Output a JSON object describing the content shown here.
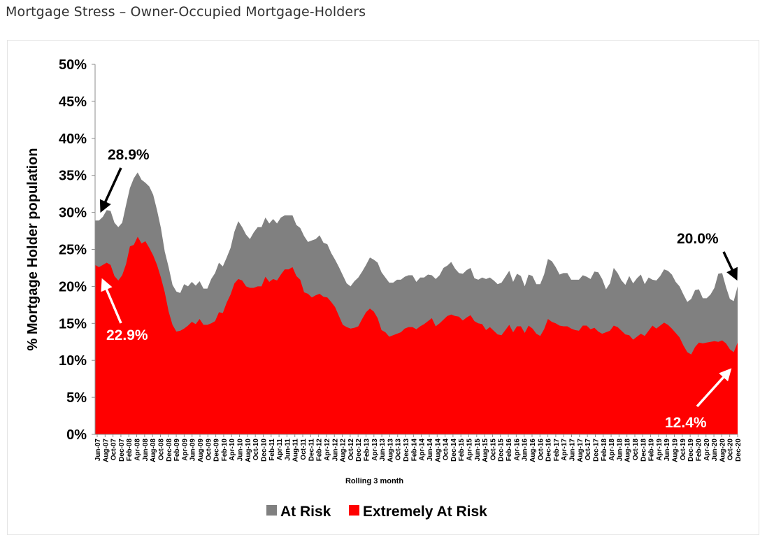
{
  "page": {
    "title": "Mortgage Stress – Owner-Occupied Mortgage-Holders"
  },
  "chart_data": {
    "type": "area",
    "title": "",
    "xlabel": "Rolling 3 month",
    "ylabel": "% Mortgage Holder population",
    "ylim": [
      0,
      50
    ],
    "yticks": [
      0,
      5,
      10,
      15,
      20,
      25,
      30,
      35,
      40,
      45,
      50
    ],
    "ytick_labels": [
      "0%",
      "5%",
      "10%",
      "15%",
      "20%",
      "25%",
      "30%",
      "35%",
      "40%",
      "45%",
      "50%"
    ],
    "xtick_labels": [
      "Jun-07",
      "Aug-07",
      "Oct-07",
      "Dec-07",
      "Feb-08",
      "Apr-08",
      "Jun-08",
      "Aug-08",
      "Oct-08",
      "Dec-08",
      "Feb-09",
      "Apr-09",
      "Jun-09",
      "Aug-09",
      "Oct-09",
      "Dec-09",
      "Feb-10",
      "Apr-10",
      "Jun-10",
      "Aug-10",
      "Oct-10",
      "Dec-10",
      "Feb-11",
      "Apr-11",
      "Jun-11",
      "Aug-11",
      "Oct-11",
      "Dec-11",
      "Feb-12",
      "Apr-12",
      "Jun-12",
      "Aug-12",
      "Oct-12",
      "Dec-12",
      "Feb-13",
      "Apr-13",
      "Jun-13",
      "Aug-13",
      "Oct-13",
      "Dec-13",
      "Feb-14",
      "Apr-14",
      "Jun-14",
      "Aug-14",
      "Oct-14",
      "Dec-14",
      "Feb-15",
      "Apr-15",
      "Jun-15",
      "Aug-15",
      "Oct-15",
      "Dec-15",
      "Feb-16",
      "Apr-16",
      "Jun-16",
      "Aug-16",
      "Oct-16",
      "Dec-16",
      "Feb-17",
      "Apr-17",
      "Jun-17",
      "Aug-17",
      "Oct-17",
      "Dec-17",
      "Feb-18",
      "Apr-18",
      "Jun-18",
      "Aug-18",
      "Oct-18",
      "Dec-18",
      "Feb-19",
      "Apr-19",
      "Jun-19",
      "Aug-19",
      "Oct-19",
      "Dec-19",
      "Feb-20",
      "Apr-20",
      "Jun-20",
      "Aug-20",
      "Oct-20",
      "Dec-20"
    ],
    "grid": false,
    "legend": "bottom",
    "series": [
      {
        "name": "At Risk",
        "color": "#808080",
        "values": [
          28.9,
          28.9,
          29.4,
          30.3,
          30.2,
          28.6,
          28.0,
          28.6,
          31.0,
          33.3,
          34.6,
          35.4,
          34.4,
          34.0,
          33.5,
          32.4,
          30.3,
          27.9,
          24.7,
          22.6,
          20.2,
          19.3,
          19.1,
          20.3,
          20.0,
          20.6,
          20.1,
          20.7,
          19.7,
          19.7,
          21.0,
          21.8,
          23.2,
          22.7,
          23.9,
          25.2,
          27.4,
          28.8,
          28.0,
          27.0,
          26.4,
          27.3,
          28.0,
          28.0,
          29.3,
          28.5,
          29.1,
          28.5,
          29.3,
          29.6,
          29.6,
          29.6,
          28.3,
          27.9,
          26.8,
          26.0,
          26.2,
          26.4,
          26.9,
          25.9,
          25.7,
          24.5,
          23.6,
          22.6,
          21.5,
          20.4,
          20.0,
          20.7,
          21.2,
          22.0,
          22.9,
          23.9,
          23.6,
          23.2,
          21.9,
          21.2,
          20.5,
          20.5,
          20.9,
          20.9,
          21.3,
          21.5,
          21.5,
          20.6,
          21.2,
          21.2,
          21.6,
          21.5,
          21.0,
          21.5,
          22.5,
          22.8,
          23.3,
          22.4,
          21.8,
          21.7,
          22.2,
          22.5,
          21.1,
          20.9,
          21.2,
          21.0,
          21.2,
          20.8,
          20.3,
          20.5,
          21.3,
          22.1,
          20.6,
          21.7,
          21.4,
          20.0,
          21.6,
          21.4,
          20.3,
          20.3,
          21.6,
          23.7,
          23.4,
          22.6,
          21.6,
          21.8,
          21.8,
          20.9,
          20.9,
          20.9,
          21.5,
          21.3,
          21.0,
          22.0,
          21.9,
          21.0,
          19.6,
          20.4,
          22.5,
          21.8,
          20.8,
          20.2,
          21.4,
          20.4,
          21.1,
          21.6,
          20.3,
          21.2,
          20.9,
          20.8,
          21.4,
          22.3,
          22.1,
          21.6,
          20.6,
          20.0,
          18.9,
          17.9,
          18.3,
          19.5,
          19.6,
          18.4,
          18.4,
          18.9,
          19.8,
          21.7,
          21.8,
          19.9,
          18.3,
          18.0,
          20.0
        ]
      },
      {
        "name": "Extremely At Risk",
        "color": "#ff0000",
        "values": [
          22.9,
          22.6,
          22.9,
          23.2,
          22.9,
          21.4,
          20.8,
          21.5,
          23.0,
          25.4,
          25.6,
          26.7,
          25.8,
          26.1,
          25.2,
          24.2,
          22.9,
          21.2,
          19.2,
          16.6,
          14.8,
          13.9,
          14.0,
          14.3,
          14.7,
          15.2,
          14.9,
          15.6,
          14.8,
          14.8,
          15.0,
          15.3,
          16.5,
          16.4,
          17.8,
          18.9,
          20.4,
          21.0,
          20.8,
          20.0,
          19.8,
          19.8,
          20.0,
          20.0,
          21.3,
          20.6,
          21.0,
          20.8,
          21.6,
          22.3,
          22.3,
          22.6,
          21.4,
          20.9,
          19.2,
          19.0,
          18.5,
          18.8,
          19.0,
          18.6,
          18.5,
          17.9,
          17.2,
          16.0,
          14.8,
          14.5,
          14.3,
          14.4,
          14.6,
          15.6,
          16.5,
          17.0,
          16.6,
          15.7,
          14.1,
          13.8,
          13.2,
          13.4,
          13.6,
          13.8,
          14.3,
          14.5,
          14.5,
          14.2,
          14.6,
          14.9,
          15.3,
          15.7,
          14.6,
          15.0,
          15.5,
          16.0,
          16.2,
          16.0,
          15.9,
          15.4,
          15.8,
          16.1,
          15.3,
          15.0,
          14.9,
          14.1,
          14.5,
          14.0,
          13.5,
          13.4,
          14.1,
          14.8,
          13.8,
          14.6,
          14.6,
          13.7,
          14.7,
          14.3,
          13.6,
          13.3,
          14.2,
          15.6,
          15.2,
          15.0,
          14.7,
          14.6,
          14.6,
          14.3,
          14.1,
          14.0,
          14.7,
          14.7,
          14.2,
          14.4,
          13.9,
          13.6,
          13.8,
          14.0,
          14.7,
          14.5,
          14.0,
          13.5,
          13.4,
          12.8,
          13.2,
          13.6,
          13.3,
          14.0,
          14.7,
          14.3,
          14.7,
          15.1,
          14.8,
          14.3,
          13.7,
          13.1,
          12.0,
          11.1,
          10.8,
          11.8,
          12.4,
          12.3,
          12.4,
          12.5,
          12.6,
          12.5,
          12.7,
          12.3,
          11.5,
          11.1,
          12.4
        ]
      }
    ],
    "annotations": [
      {
        "text": "28.9%"
      },
      {
        "text": "22.9%"
      },
      {
        "text": "20.0%"
      },
      {
        "text": "12.4%"
      }
    ]
  }
}
